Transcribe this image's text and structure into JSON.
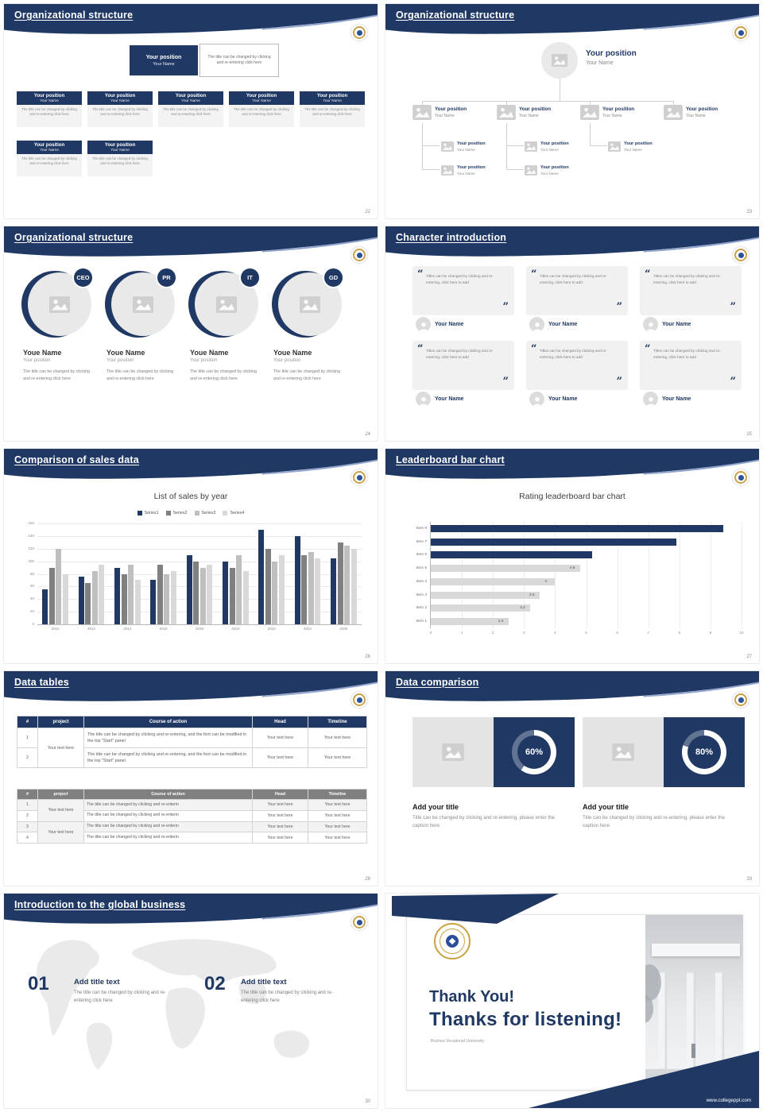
{
  "meta": {
    "accent_navy": "#1f3864",
    "light_gray": "#d9d9d9",
    "gold": "#c9a445"
  },
  "icons": {
    "picture_placeholder": "pic-icon",
    "person_avatar": "person-icon",
    "university_logo": "logo-badge"
  },
  "common": {
    "position_label": "Your position",
    "name_label": "Your Name",
    "change_note": "The title can be changed by clicking and re-entering click here"
  },
  "slide22": {
    "title": "Organizational structure",
    "page": "22"
  },
  "slide23": {
    "title": "Organizational structure",
    "page": "23"
  },
  "slide24": {
    "title": "Organizational structure",
    "page": "24",
    "badges": [
      "CEO",
      "PR",
      "IT",
      "GD"
    ],
    "member_name": "Youe Name",
    "member_position": "Your position",
    "member_note": "The title can be changed by clicking and re-entering click here"
  },
  "slide25": {
    "title": "Character introduction",
    "page": "25",
    "quote_open": "“",
    "quote_close": "”",
    "quote": "Titles can be changed by clicking and re-entering, click here to add",
    "person_name": "Your Name"
  },
  "slide26": {
    "title": "Comparison of sales data",
    "page": "26"
  },
  "slide27": {
    "title": "Leaderboard bar chart",
    "page": "27"
  },
  "slide28": {
    "title": "Data tables",
    "page": "28",
    "table1": {
      "headers": [
        "#",
        "project",
        "Course of action",
        "Head",
        "Timeline"
      ],
      "project_value": "Your text here",
      "rows": [
        {
          "num": "1",
          "course": "The title can be changed by clicking and re-entering, and the font can be modified in the top \"Start\" panel",
          "head": "Your text here",
          "timeline": "Your text here"
        },
        {
          "num": "2",
          "course": "The title can be changed by clicking and re-entering, and the font can be modified in the top \"Start\" panel",
          "head": "Your text here",
          "timeline": "Your text here"
        }
      ]
    },
    "table2": {
      "headers": [
        "#",
        "project",
        "Course of action",
        "Head",
        "Timeline"
      ],
      "project_values": [
        "Your text here",
        "Your text here"
      ],
      "rows": [
        {
          "num": "1",
          "course": "The title can be changed by clicking and re-enterin",
          "head": "Your text here",
          "timeline": "Your text here"
        },
        {
          "num": "2",
          "course": "The title can be changed by clicking and re-enterin",
          "head": "Your text here",
          "timeline": "Your text here"
        },
        {
          "num": "3",
          "course": "The title can be changed by clicking and re-enterin",
          "head": "Your text here",
          "timeline": "Your text here"
        },
        {
          "num": "4",
          "course": "The title can be changed by clicking and re-enterin",
          "head": "Your text here",
          "timeline": "Your text here"
        }
      ]
    }
  },
  "slide29": {
    "title": "Data comparison",
    "page": "29",
    "item_title": "Add your title",
    "caption": "Title can be changed by clicking and re-entering, please enter the caption here"
  },
  "slide30": {
    "title": "Introduction to the global business",
    "page": "30",
    "items": [
      {
        "num": "01"
      },
      {
        "num": "02"
      }
    ],
    "item_title": "Add title text",
    "item_note": "The title can be changed by clicking and re-entering click here"
  },
  "slide31": {
    "thank_you": "Thank You!",
    "subtitle": "Thanks for listening!",
    "university": "Bozhou Vocational University",
    "website": "www.collegeppt.com"
  },
  "chart_data": [
    {
      "type": "bar",
      "title": "List of sales by year",
      "categories": [
        "2010",
        "2012",
        "2014",
        "2016",
        "2018",
        "2020",
        "2022",
        "2024",
        "2026"
      ],
      "series": [
        {
          "name": "Series1",
          "color": "#1f3864",
          "values": [
            55,
            75,
            90,
            70,
            110,
            100,
            150,
            140,
            105
          ]
        },
        {
          "name": "Series2",
          "color": "#808080",
          "values": [
            90,
            65,
            80,
            95,
            100,
            90,
            120,
            110,
            130
          ]
        },
        {
          "name": "Series3",
          "color": "#bfbfbf",
          "values": [
            120,
            85,
            95,
            80,
            90,
            110,
            100,
            115,
            125
          ]
        },
        {
          "name": "Series4",
          "color": "#d9d9d9",
          "values": [
            80,
            95,
            70,
            85,
            95,
            85,
            110,
            105,
            120
          ]
        }
      ],
      "xlabel": "",
      "ylabel": "",
      "ylim": [
        0,
        160
      ],
      "yticks": [
        0,
        20,
        40,
        60,
        80,
        100,
        120,
        140,
        160
      ],
      "grid": true,
      "legend_position": "top"
    },
    {
      "type": "bar-horizontal",
      "title": "Rating leaderboard bar chart",
      "categories": [
        "Item 1",
        "Item 2",
        "Item 3",
        "Item 4",
        "Item 5",
        "Item 6",
        "Item 7",
        "Item 8"
      ],
      "values": [
        2.5,
        3.2,
        3.5,
        4,
        4.8,
        5.2,
        7.9,
        9.4
      ],
      "bar_colors": [
        "#d9d9d9",
        "#d9d9d9",
        "#d9d9d9",
        "#d9d9d9",
        "#d9d9d9",
        "#1f3864",
        "#1f3864",
        "#1f3864"
      ],
      "value_labels": [
        "2.5",
        "3.2",
        "3.5",
        "4",
        "4.8",
        "",
        "",
        ""
      ],
      "xlim": [
        0,
        10
      ],
      "xticks": [
        0,
        1,
        2,
        3,
        4,
        5,
        6,
        7,
        8,
        9,
        10
      ],
      "grid": true
    },
    {
      "type": "donut",
      "value": 60,
      "label": "60%"
    },
    {
      "type": "donut",
      "value": 80,
      "label": "80%"
    }
  ]
}
